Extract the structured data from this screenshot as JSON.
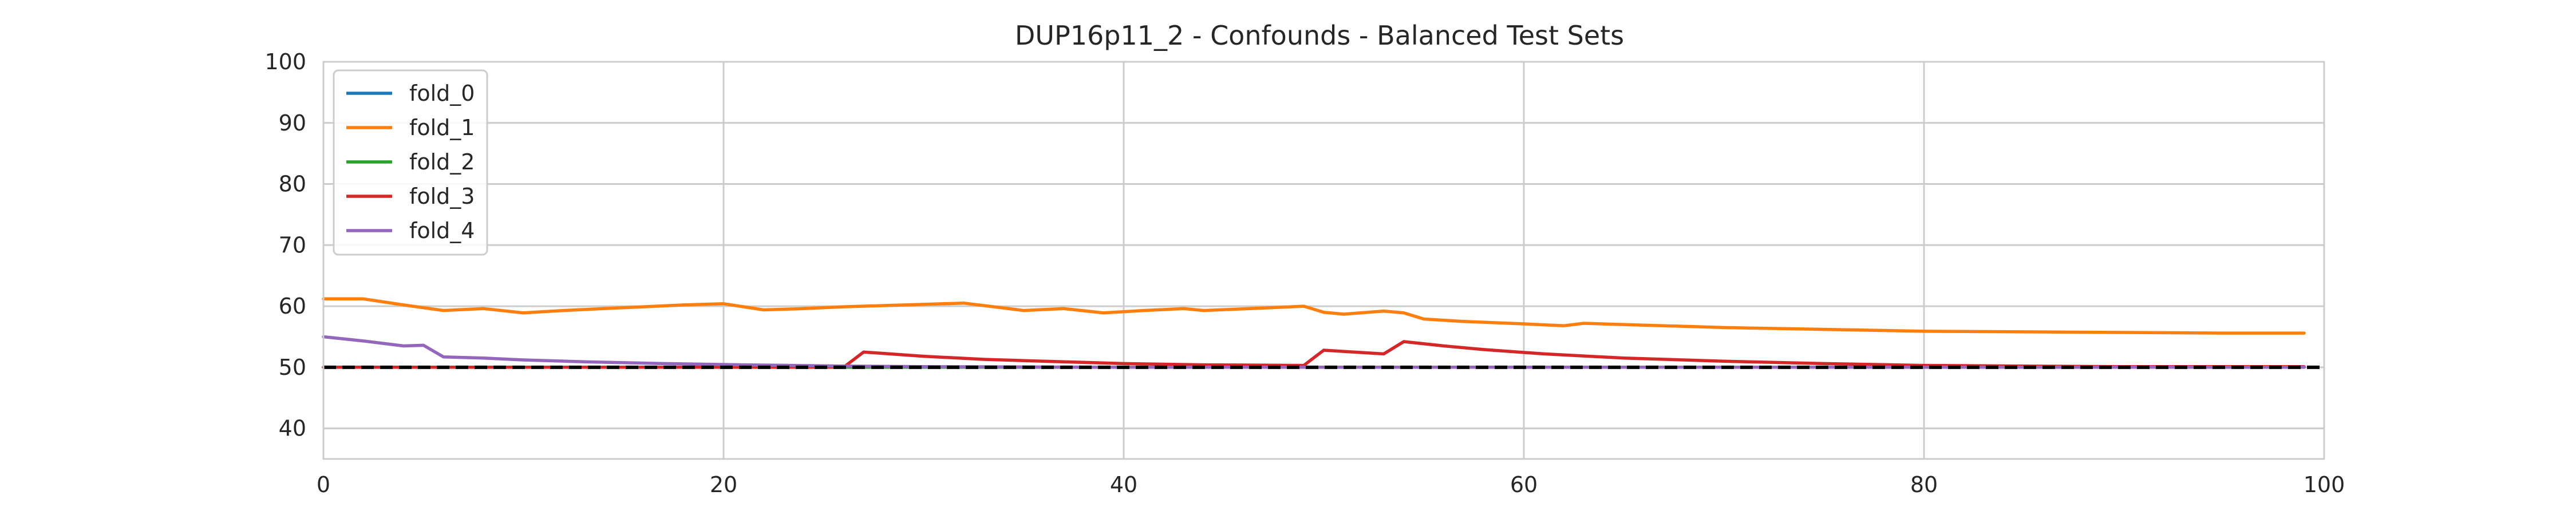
{
  "chart_data": {
    "type": "line",
    "title": "DUP16p11_2 - Confounds - Balanced Test Sets",
    "xlabel": "",
    "ylabel": "",
    "xlim": [
      0,
      100
    ],
    "ylim": [
      35,
      100
    ],
    "xticks": [
      0,
      20,
      40,
      60,
      80,
      100
    ],
    "yticks": [
      40,
      50,
      60,
      70,
      80,
      90,
      100
    ],
    "grid": true,
    "legend_position": "top-left",
    "reference_line": {
      "y": 50,
      "style": "dashed",
      "color": "#000000"
    },
    "series": [
      {
        "name": "fold_0",
        "color": "#1f77b4",
        "points": [
          [
            0,
            50
          ],
          [
            99,
            50
          ]
        ]
      },
      {
        "name": "fold_1",
        "color": "#ff7f0e",
        "points": [
          [
            0,
            61.2
          ],
          [
            2,
            61.2
          ],
          [
            4,
            60.2
          ],
          [
            6,
            59.3
          ],
          [
            8,
            59.6
          ],
          [
            10,
            58.9
          ],
          [
            12,
            59.3
          ],
          [
            14,
            59.6
          ],
          [
            16,
            59.9
          ],
          [
            18,
            60.2
          ],
          [
            20,
            60.4
          ],
          [
            22,
            59.4
          ],
          [
            24,
            59.6
          ],
          [
            26,
            59.9
          ],
          [
            28,
            60.1
          ],
          [
            30,
            60.3
          ],
          [
            32,
            60.5
          ],
          [
            35,
            59.3
          ],
          [
            37,
            59.6
          ],
          [
            39,
            58.9
          ],
          [
            41,
            59.3
          ],
          [
            43,
            59.6
          ],
          [
            44,
            59.3
          ],
          [
            47,
            59.7
          ],
          [
            49,
            60.0
          ],
          [
            50,
            59.0
          ],
          [
            51,
            58.7
          ],
          [
            53,
            59.2
          ],
          [
            54,
            58.9
          ],
          [
            55,
            57.9
          ],
          [
            57,
            57.5
          ],
          [
            60,
            57.1
          ],
          [
            62,
            56.8
          ],
          [
            63,
            57.2
          ],
          [
            66,
            56.9
          ],
          [
            70,
            56.5
          ],
          [
            75,
            56.2
          ],
          [
            80,
            55.9
          ],
          [
            85,
            55.8
          ],
          [
            90,
            55.7
          ],
          [
            95,
            55.6
          ],
          [
            99,
            55.6
          ]
        ]
      },
      {
        "name": "fold_2",
        "color": "#2ca02c",
        "points": [
          [
            0,
            50
          ],
          [
            99,
            50
          ]
        ]
      },
      {
        "name": "fold_3",
        "color": "#d62728",
        "points": [
          [
            0,
            50
          ],
          [
            26,
            50
          ],
          [
            27,
            52.5
          ],
          [
            30,
            51.8
          ],
          [
            33,
            51.3
          ],
          [
            36,
            51.0
          ],
          [
            40,
            50.6
          ],
          [
            44,
            50.4
          ],
          [
            49,
            50.3
          ],
          [
            50,
            52.8
          ],
          [
            53,
            52.2
          ],
          [
            54,
            54.2
          ],
          [
            56,
            53.5
          ],
          [
            58,
            52.9
          ],
          [
            61,
            52.2
          ],
          [
            65,
            51.5
          ],
          [
            70,
            51.0
          ],
          [
            75,
            50.6
          ],
          [
            80,
            50.3
          ],
          [
            85,
            50.2
          ],
          [
            90,
            50.1
          ],
          [
            99,
            50.1
          ]
        ]
      },
      {
        "name": "fold_4",
        "color": "#9467bd",
        "points": [
          [
            0,
            55.0
          ],
          [
            2,
            54.3
          ],
          [
            4,
            53.5
          ],
          [
            5,
            53.6
          ],
          [
            6,
            51.7
          ],
          [
            8,
            51.5
          ],
          [
            10,
            51.2
          ],
          [
            13,
            50.9
          ],
          [
            17,
            50.6
          ],
          [
            21,
            50.4
          ],
          [
            26,
            50.2
          ],
          [
            30,
            50.1
          ],
          [
            40,
            50.0
          ],
          [
            99,
            50.0
          ]
        ]
      }
    ]
  }
}
